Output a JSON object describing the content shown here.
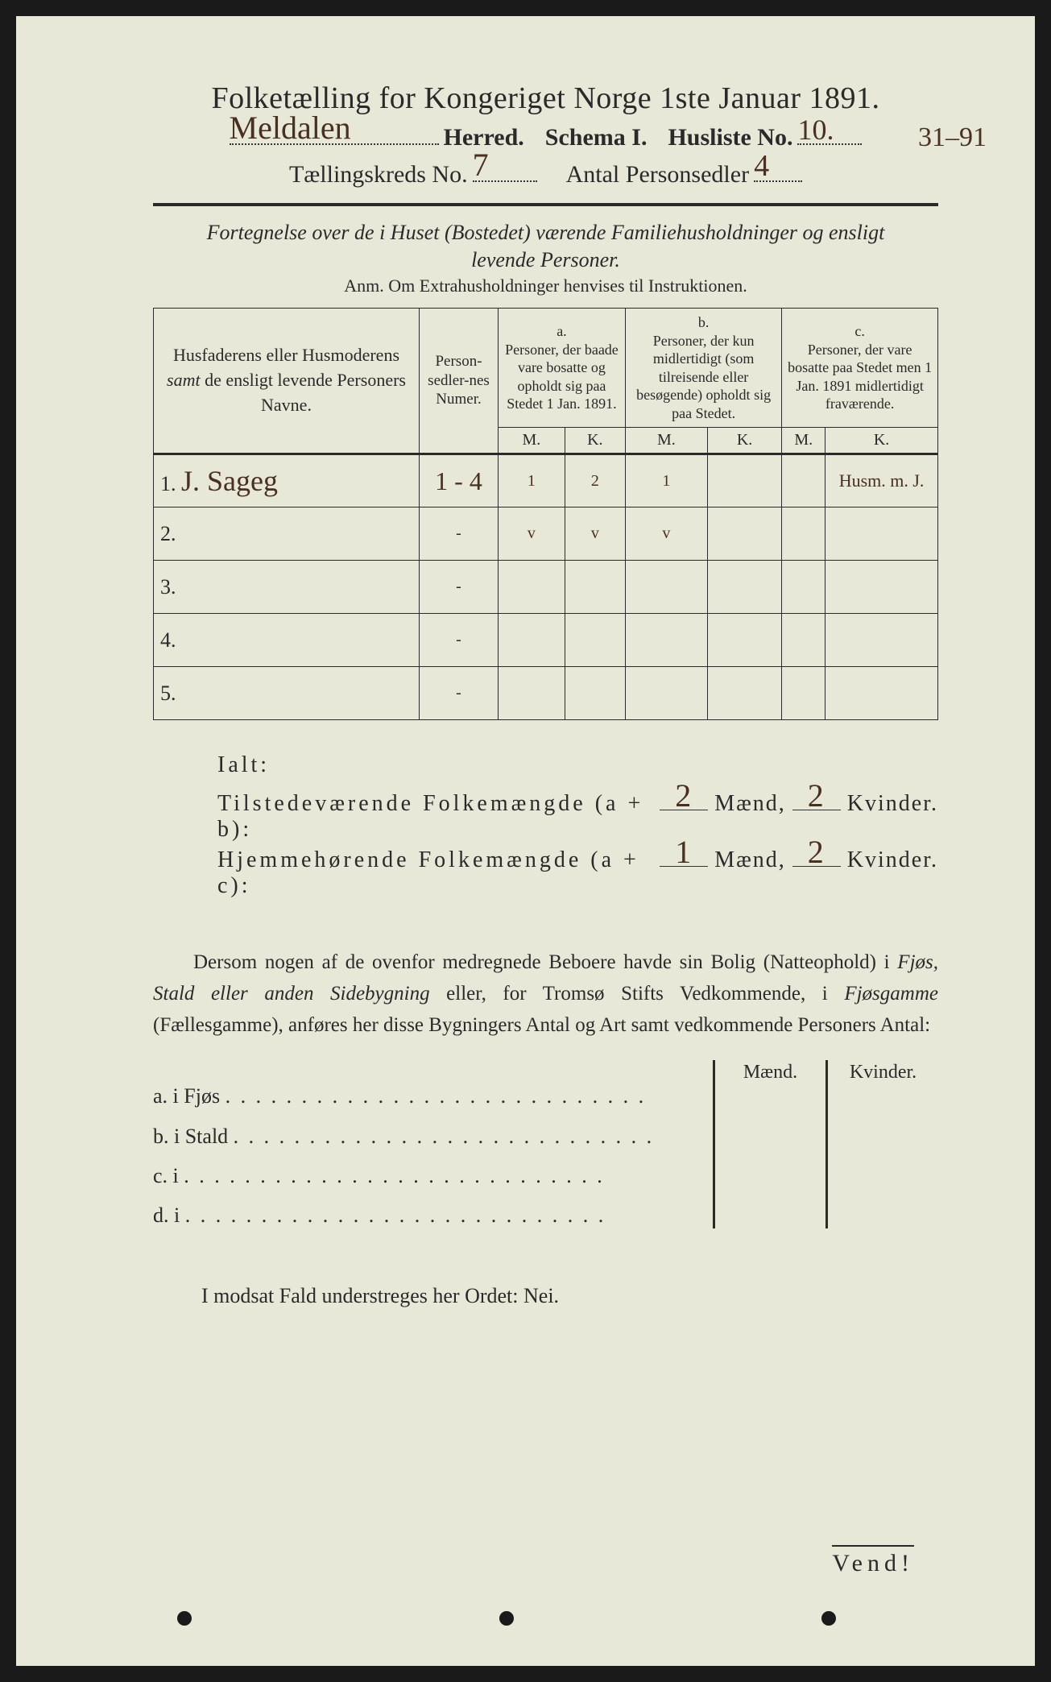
{
  "title": "Folketælling for Kongeriget Norge 1ste Januar 1891.",
  "herred_value": "Meldalen",
  "herred_label": "Herred.",
  "schema_label": "Schema I.",
  "husliste_label": "Husliste No.",
  "husliste_value": "10.",
  "margin_note": "31–91",
  "kreds_label": "Tællingskreds No.",
  "kreds_value": "7",
  "antal_label": "Antal Personsedler",
  "antal_value": "4",
  "subtitle1": "Fortegnelse over de i Huset (Bostedet) værende Familiehusholdninger og ensligt",
  "subtitle2": "levende Personer.",
  "anm": "Anm.   Om Extrahusholdninger henvises til Instruktionen.",
  "col_names": "Husfaderens eller Husmoderens <i>samt</i> de ensligt levende Personers Navne.",
  "col_nums": "Person-sedler-nes Numer.",
  "col_a_label": "a.",
  "col_a": "Personer, der baade vare bosatte og opholdt sig paa Stedet 1 Jan. 1891.",
  "col_b_label": "b.",
  "col_b": "Personer, der kun midlertidigt (som tilreisende eller besøgende) opholdt sig paa Stedet.",
  "col_c_label": "c.",
  "col_c": "Personer, der vare bosatte paa Stedet men 1 Jan. 1891 midlertidigt fraværende.",
  "m": "M.",
  "k": "K.",
  "rows": [
    {
      "n": "1.",
      "name": "J. Sageg",
      "num": "1 - 4",
      "am": "1",
      "ak": "2",
      "bm": "1",
      "bk": "",
      "cm": "",
      "ck": "Husm. m. J."
    },
    {
      "n": "2.",
      "name": "",
      "num": "-",
      "am": "v",
      "ak": "v",
      "bm": "v",
      "bk": "",
      "cm": "",
      "ck": ""
    },
    {
      "n": "3.",
      "name": "",
      "num": "-",
      "am": "",
      "ak": "",
      "bm": "",
      "bk": "",
      "cm": "",
      "ck": ""
    },
    {
      "n": "4.",
      "name": "",
      "num": "-",
      "am": "",
      "ak": "",
      "bm": "",
      "bk": "",
      "cm": "",
      "ck": ""
    },
    {
      "n": "5.",
      "name": "",
      "num": "-",
      "am": "",
      "ak": "",
      "bm": "",
      "bk": "",
      "cm": "",
      "ck": ""
    }
  ],
  "ialt_label": "Ialt:",
  "tilstede_label": "Tilstedeværende Folkemængde (a + b):",
  "tilstede_m": "2",
  "tilstede_k": "2",
  "hjemme_label": "Hjemmehørende Folkemængde (a + c):",
  "hjemme_m": "1",
  "hjemme_k": "2",
  "maend": "Mænd,",
  "kvinder": "Kvinder.",
  "para": "Dersom nogen af de ovenfor medregnede Beboere havde sin Bolig (Natteophold) i <i>Fjøs, Stald eller anden Sidebygning</i> eller, for Tromsø Stifts Vedkommende, i <i>Fjøsgamme</i> (Fællesgamme), anføres her disse Bygningers Antal og Art samt vedkommende Personers Antal:",
  "side_m": "Mænd.",
  "side_k": "Kvinder.",
  "side_rows": [
    {
      "label": "a.  i       Fjøs"
    },
    {
      "label": "b.  i       Stald"
    },
    {
      "label": "c.  i"
    },
    {
      "label": "d.  i"
    }
  ],
  "footer": "I modsat Fald understreges her Ordet: Nei.",
  "vend": "Vend!",
  "colors": {
    "paper": "#e8e8d8",
    "ink": "#2a2a2a",
    "handwriting": "#4a3020",
    "background": "#1a1a1a"
  }
}
